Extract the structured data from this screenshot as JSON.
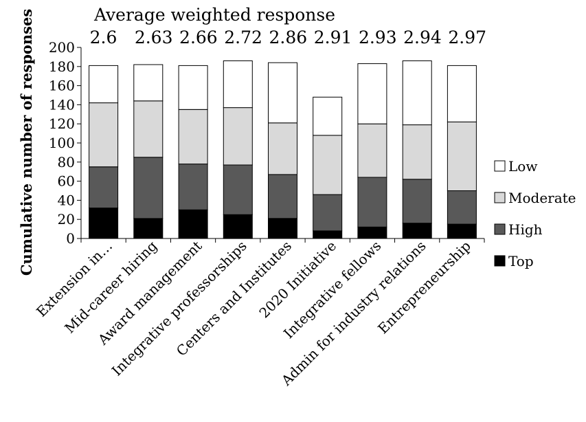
{
  "chart_data": {
    "type": "bar",
    "stacked": true,
    "title": "Average weighted response",
    "ylabel": "Cumulative number of responses",
    "xlabel": "",
    "ylim": [
      0,
      200
    ],
    "yticks": [
      0,
      20,
      40,
      60,
      80,
      100,
      120,
      140,
      160,
      180,
      200
    ],
    "categories": [
      "Extension in…",
      "Mid-career hiring",
      "Award management",
      "Integrative professorships",
      "Centers and Institutes",
      "2020 Initiative",
      "Integrative fellows",
      "Admin for industry relations",
      "Entrepreneurship"
    ],
    "average_weighted_response": [
      "2.6",
      "2.63",
      "2.66",
      "2.72",
      "2.86",
      "2.91",
      "2.93",
      "2.94",
      "2.97"
    ],
    "series": [
      {
        "name": "Top",
        "color": "#000000",
        "values": [
          32,
          21,
          30,
          25,
          21,
          8,
          12,
          16,
          15
        ]
      },
      {
        "name": "High",
        "color": "#595959",
        "values": [
          43,
          64,
          48,
          52,
          46,
          38,
          52,
          46,
          35
        ]
      },
      {
        "name": "Moderate",
        "color": "#d9d9d9",
        "values": [
          67,
          59,
          57,
          60,
          54,
          62,
          56,
          57,
          72
        ]
      },
      {
        "name": "Low",
        "color": "#ffffff",
        "values": [
          39,
          38,
          46,
          49,
          63,
          40,
          63,
          67,
          59
        ]
      }
    ],
    "legend": {
      "position": "right",
      "order": [
        "Low",
        "Moderate",
        "High",
        "Top"
      ]
    },
    "grid": false
  }
}
